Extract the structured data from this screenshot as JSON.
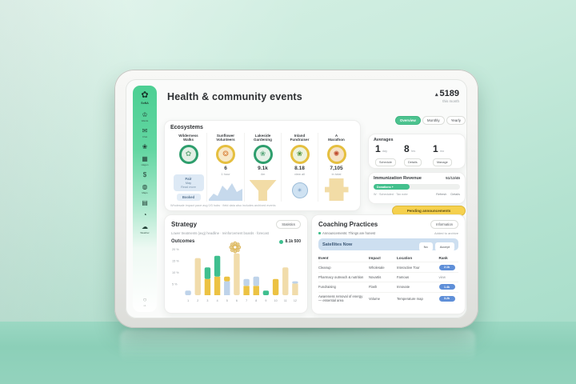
{
  "scene": {
    "wall_top": "#d9f1e6",
    "wall_bottom": "#a4dcc8",
    "floor": "#8ccfb8",
    "accent": "#4cc38f"
  },
  "sidebar": {
    "logo_icon": "flower",
    "logo_label": "SoNA",
    "items": [
      {
        "icon": "crown",
        "label": "Wards"
      },
      {
        "icon": "mail",
        "label": "Chat"
      },
      {
        "icon": "leaf",
        "label": ""
      },
      {
        "icon": "calendar",
        "label": "Hagen"
      },
      {
        "icon": "dollar",
        "label": ""
      },
      {
        "icon": "globe",
        "label": "Maps"
      },
      {
        "icon": "folder",
        "label": ""
      },
      {
        "icon": "clock",
        "label": ""
      },
      {
        "icon": "cloud",
        "label": "Weather"
      }
    ],
    "footer_icon": "gear",
    "footer_label": "v1"
  },
  "header": {
    "title": "Health & community events",
    "stat_value": "5189",
    "stat_caption": "this month"
  },
  "segmented": {
    "options": [
      "Overview",
      "Monthly",
      "Yearly"
    ],
    "active_index": 0
  },
  "events_card": {
    "title": "Ecosystems",
    "columns": [
      {
        "title_line1": "Wilderness",
        "title_line2": "Walks",
        "badge": {
          "ring": "#2e9e6d",
          "inner": "#e3f0e6",
          "glyph": "flower",
          "glyph_color": "#6fae85"
        },
        "viz": "infobox",
        "box_lines": [
          "Fair",
          "May",
          "Read more"
        ],
        "chip": "Booked"
      },
      {
        "title_line1": "Sunflower",
        "title_line2": "Volunteers",
        "badge": {
          "ring": "#e5bf3f",
          "inner": "#f7e8c8",
          "glyph": "sun",
          "glyph_color": "#d9813c"
        },
        "value": "6",
        "value_sub": "1 hour",
        "viz": "area"
      },
      {
        "title_line1": "Lakeside",
        "title_line2": "Gardening",
        "badge": {
          "ring": "#2e9e6d",
          "inner": "#e6f2e8",
          "glyph": "blossom",
          "glyph_color": "#5ba87c"
        },
        "value": "9.1k",
        "value_sub": "4m",
        "viz": "funnel"
      },
      {
        "title_line1": "Inland",
        "title_line2": "Fundraiser",
        "badge": {
          "ring": "#e5bf3f",
          "inner": "#edf3de",
          "glyph": "leaf",
          "glyph_color": "#4e8f3a"
        },
        "value": "8.18",
        "value_sub": "view all",
        "viz": "donut"
      },
      {
        "title_line1": "A",
        "title_line2": "Marathon",
        "badge": {
          "ring": "#e5bf3f",
          "inner": "#f6e2c6",
          "glyph": "burst",
          "glyph_color": "#bf4a2e"
        },
        "value": "7,105",
        "value_sub": "in total",
        "viz": "cross"
      }
    ],
    "footer": "Wholesale impact pace avg 0/3 hubs · field data also includes archived events"
  },
  "averages_card": {
    "title": "Averages",
    "items": [
      {
        "value": "1",
        "unit": "day",
        "action": "Schedule"
      },
      {
        "value": "8",
        "unit": "hrs",
        "action": "Details"
      },
      {
        "value": "1",
        "unit": "mo",
        "action": "Manage"
      }
    ]
  },
  "revenue_card": {
    "title": "Immunization Revenue",
    "date": "51/13/45",
    "progress_label": "Donations +",
    "progress_pct": 42,
    "footer_left": "W · Scheduled · Tax note",
    "links": [
      "Refresh",
      "Details"
    ]
  },
  "pending_badge": "Pending announcements",
  "strategy_card": {
    "title": "Strategy",
    "button": "Statistics",
    "subtitle": "Lower treatments (avg) headline · reinforcement boards · forecast",
    "section_label": "Outcomes",
    "legend_value": "8.1k 500"
  },
  "chart_data": {
    "type": "bar",
    "stacked": true,
    "title": "Outcomes",
    "x_labels": [
      "1",
      "2",
      "3",
      "4",
      "5",
      "6",
      "7",
      "8",
      "9",
      "10",
      "11",
      "12"
    ],
    "ylim": [
      0,
      20
    ],
    "y_ticks": [
      {
        "value": 20,
        "label": "20 %"
      },
      {
        "value": 15,
        "label": "15 %"
      },
      {
        "value": 10,
        "label": "10 %"
      },
      {
        "value": 5,
        "label": "5 %"
      }
    ],
    "colors": {
      "yellow": "#ecc243",
      "paleYellow": "#f1dcab",
      "green": "#3fbf8f",
      "blue": "#bed3ea"
    },
    "legend": [
      {
        "color": "#3fbf8f",
        "label": "8.1k 500"
      }
    ],
    "bars": [
      [
        [
          "blue",
          2
        ]
      ],
      [
        [
          "paleYellow",
          16
        ]
      ],
      [
        [
          "yellow",
          7
        ],
        [
          "green",
          5
        ]
      ],
      [
        [
          "yellow",
          8
        ],
        [
          "green",
          9
        ]
      ],
      [
        [
          "blue",
          6
        ],
        [
          "yellow",
          2
        ]
      ],
      [
        [
          "paleYellow",
          18
        ]
      ],
      [
        [
          "yellow",
          4
        ],
        [
          "blue",
          3
        ]
      ],
      [
        [
          "yellow",
          4
        ],
        [
          "blue",
          4
        ]
      ],
      [
        [
          "green",
          2
        ]
      ],
      [
        [
          "yellow",
          7
        ]
      ],
      [
        [
          "paleYellow",
          12
        ]
      ],
      [
        [
          "paleYellow",
          5
        ],
        [
          "blue",
          1
        ]
      ]
    ],
    "grid": false,
    "legend_position": "top-right"
  },
  "coaching_card": {
    "title": "Coaching Practices",
    "button": "Information",
    "note_left": "Announcements: Things are honest",
    "note_right": "Added to archive",
    "banner": {
      "label": "Satellites Now",
      "buttons": [
        "No",
        "Accept"
      ]
    },
    "table": {
      "headers": [
        "Event",
        "Impact",
        "Location",
        "Rank"
      ],
      "rows": [
        {
          "event": "Cleanup",
          "impact": "Wholesale",
          "location": "Interactive Tour",
          "rank": {
            "type": "pill",
            "text": "2.1k"
          }
        },
        {
          "event": "Pharmacy outreach & nutrition",
          "impact": "Novartis",
          "location": "Famous",
          "rank": {
            "type": "text",
            "text": "view"
          }
        },
        {
          "event": "Fundraising",
          "impact": "Flash",
          "location": "Innovate",
          "rank": {
            "type": "pill",
            "text": "1.4k"
          }
        },
        {
          "event": "Awareness removal of energy — essential area",
          "impact": "Volume",
          "location": "Temperature map",
          "rank": {
            "type": "pill",
            "text": "3.2k"
          }
        }
      ]
    }
  }
}
